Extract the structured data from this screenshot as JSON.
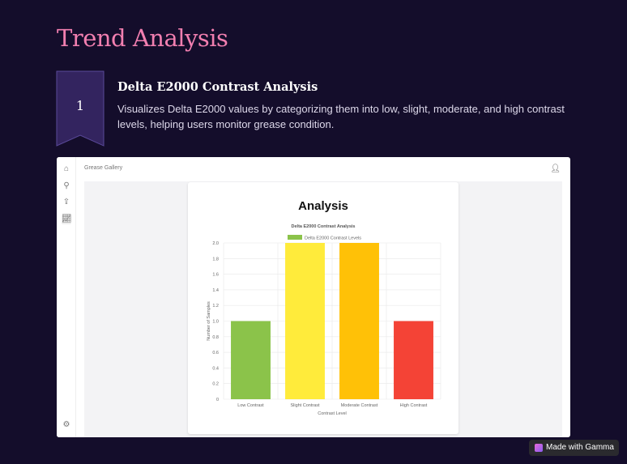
{
  "slide": {
    "title": "Trend Analysis",
    "step_number": "1",
    "heading": "Delta E2000 Contrast Analysis",
    "description": "Visualizes Delta E2000 values by categorizing them into low, slight, moderate, and high contrast levels, helping users monitor grease condition."
  },
  "app": {
    "breadcrumb": "Grease Gallery",
    "card_title": "Analysis",
    "sidebar": [
      "home-icon",
      "search-icon",
      "upload-icon",
      "chart-icon",
      "settings-icon"
    ]
  },
  "chart_data": {
    "type": "bar",
    "title": "Delta E2000 Contrast Analysis",
    "legend": "Delta E2000 Contrast Levels",
    "legend_position": "top",
    "categories": [
      "Low Contrast",
      "Slight Contrast",
      "Moderate Contrast",
      "High Contrast"
    ],
    "values": [
      1,
      2,
      2,
      1
    ],
    "colors": [
      "#8bc34a",
      "#ffeb3b",
      "#ffc107",
      "#f44336"
    ],
    "xlabel": "Contrast Level",
    "ylabel": "Number of Samples",
    "ylim": [
      0,
      2
    ],
    "yticks": [
      "0",
      "0.2",
      "0.4",
      "0.6",
      "0.8",
      "1.0",
      "1.2",
      "1.4",
      "1.6",
      "1.8",
      "2.0"
    ],
    "grid": true
  },
  "badge": {
    "label": "Made with Gamma"
  }
}
